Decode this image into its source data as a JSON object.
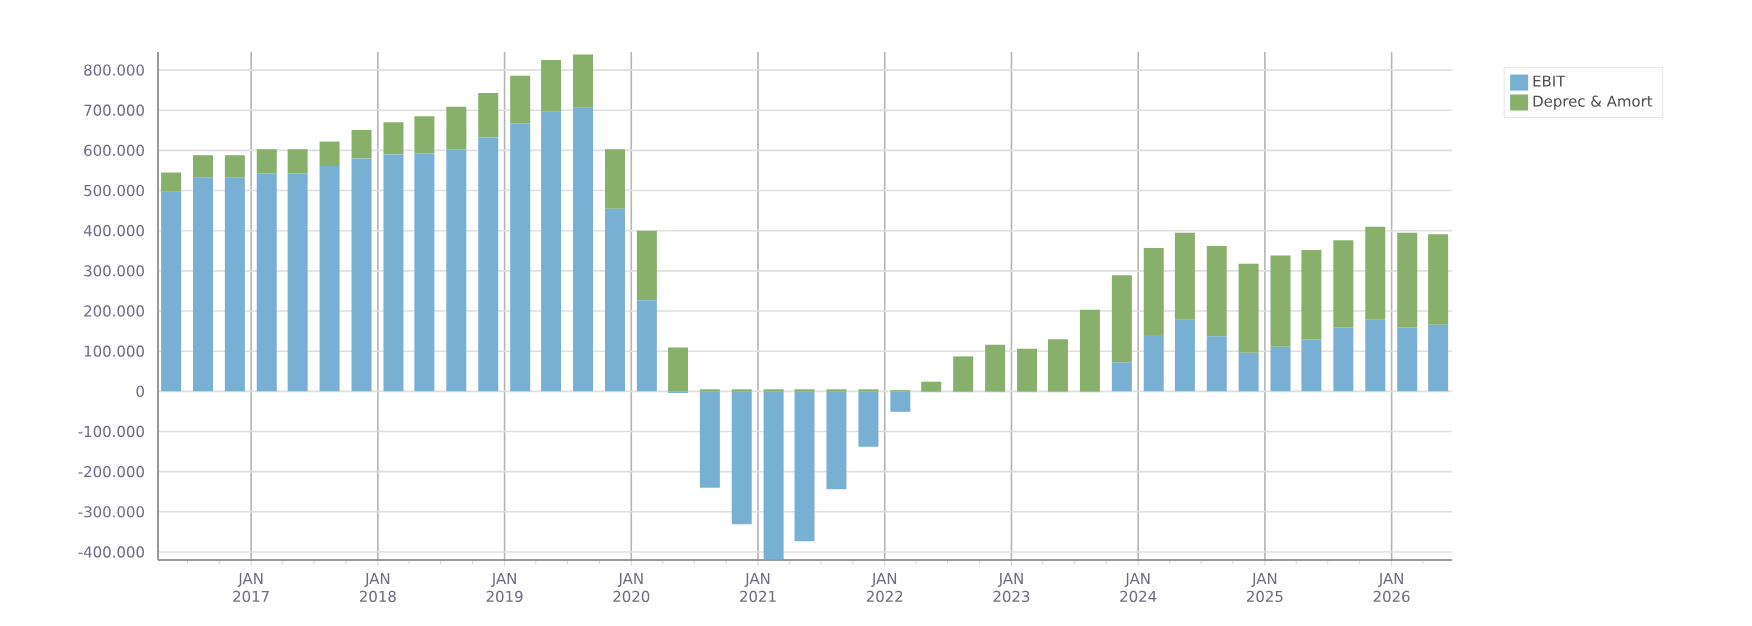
{
  "chart_data": {
    "type": "bar",
    "stacked": true,
    "x": [
      "2016-05-15",
      "2016-08-15",
      "2016-11-15",
      "2017-02-15",
      "2017-05-15",
      "2017-08-15",
      "2017-11-15",
      "2018-02-15",
      "2018-05-15",
      "2018-08-15",
      "2018-11-15",
      "2019-02-15",
      "2019-05-15",
      "2019-08-15",
      "2019-11-15",
      "2020-02-15",
      "2020-05-15",
      "2020-08-15",
      "2020-11-15",
      "2021-02-15",
      "2021-05-15",
      "2021-08-15",
      "2021-11-15",
      "2022-02-15",
      "2022-05-15",
      "2022-08-15",
      "2022-11-15",
      "2023-02-15",
      "2023-05-15",
      "2023-08-15",
      "2023-11-15",
      "2024-02-15",
      "2024-05-15",
      "2024-08-15",
      "2024-11-15",
      "2025-02-15",
      "2025-05-15",
      "2025-08-15",
      "2025-11-15",
      "2026-02-15",
      "2026-05-15"
    ],
    "series": [
      {
        "name": "EBIT",
        "color": "#78b0d4",
        "values": [
          497000,
          532000,
          532000,
          542000,
          542000,
          561000,
          580000,
          590000,
          593000,
          603000,
          632000,
          667000,
          696000,
          706000,
          455000,
          227000,
          -4000,
          -240000,
          -331000,
          -418000,
          -373000,
          -244000,
          -138000,
          -51000,
          -2000,
          -2000,
          -2000,
          -2000,
          -2000,
          -2000,
          72000,
          140000,
          178000,
          137000,
          96000,
          111000,
          130000,
          159000,
          178000,
          159000,
          166000
        ]
      },
      {
        "name": "Deprec & Amort",
        "color": "#88b06a",
        "values": [
          48000,
          56000,
          56000,
          61000,
          61000,
          61000,
          71000,
          80000,
          92000,
          106000,
          111000,
          119000,
          129000,
          133000,
          148000,
          173000,
          109000,
          5000,
          5000,
          5000,
          5000,
          5000,
          5000,
          3000,
          24000,
          87000,
          116000,
          106000,
          130000,
          203000,
          217000,
          217000,
          217000,
          225000,
          222000,
          227000,
          222000,
          217000,
          232000,
          236000,
          225000
        ]
      }
    ],
    "xlim": [
      "2016-04-07",
      "2026-06-24"
    ],
    "xticks": [
      {
        "value": "2016-07-01",
        "label": null
      },
      {
        "value": "2016-10-01",
        "label": null
      },
      {
        "value": "2017-01-01",
        "label": "JAN 2017"
      },
      {
        "value": "2017-04-01",
        "label": null
      },
      {
        "value": "2017-07-01",
        "label": null
      },
      {
        "value": "2017-10-01",
        "label": null
      },
      {
        "value": "2018-01-01",
        "label": "JAN 2018"
      },
      {
        "value": "2018-04-01",
        "label": null
      },
      {
        "value": "2018-07-01",
        "label": null
      },
      {
        "value": "2018-10-01",
        "label": null
      },
      {
        "value": "2019-01-01",
        "label": "JAN 2019"
      },
      {
        "value": "2019-04-01",
        "label": null
      },
      {
        "value": "2019-07-01",
        "label": null
      },
      {
        "value": "2019-10-01",
        "label": null
      },
      {
        "value": "2020-01-01",
        "label": "JAN 2020"
      },
      {
        "value": "2020-04-01",
        "label": null
      },
      {
        "value": "2020-07-01",
        "label": null
      },
      {
        "value": "2020-10-01",
        "label": null
      },
      {
        "value": "2021-01-01",
        "label": "JAN 2021"
      },
      {
        "value": "2021-04-01",
        "label": null
      },
      {
        "value": "2021-07-01",
        "label": null
      },
      {
        "value": "2021-10-01",
        "label": null
      },
      {
        "value": "2022-01-01",
        "label": "JAN 2022"
      },
      {
        "value": "2022-04-01",
        "label": null
      },
      {
        "value": "2022-07-01",
        "label": null
      },
      {
        "value": "2022-10-01",
        "label": null
      },
      {
        "value": "2023-01-01",
        "label": "JAN 2023"
      },
      {
        "value": "2023-04-01",
        "label": null
      },
      {
        "value": "2023-07-01",
        "label": null
      },
      {
        "value": "2023-10-01",
        "label": null
      },
      {
        "value": "2024-01-01",
        "label": "JAN 2024"
      },
      {
        "value": "2024-04-01",
        "label": null
      },
      {
        "value": "2024-07-01",
        "label": null
      },
      {
        "value": "2024-10-01",
        "label": null
      },
      {
        "value": "2025-01-01",
        "label": "JAN 2025"
      },
      {
        "value": "2025-04-01",
        "label": null
      },
      {
        "value": "2025-07-01",
        "label": null
      },
      {
        "value": "2025-10-01",
        "label": null
      },
      {
        "value": "2026-01-01",
        "label": "JAN 2026"
      },
      {
        "value": "2026-04-01",
        "label": null
      }
    ],
    "ylim": [
      -420000,
      845000
    ],
    "yticks": [
      {
        "value": -400000,
        "label": "-400.000"
      },
      {
        "value": -300000,
        "label": "-300.000"
      },
      {
        "value": -200000,
        "label": "-200.000"
      },
      {
        "value": -100000,
        "label": "-100.000"
      },
      0,
      {
        "value": 100000,
        "label": "100.000"
      },
      {
        "value": 200000,
        "label": "200.000"
      },
      {
        "value": 300000,
        "label": "300.000"
      },
      {
        "value": 400000,
        "label": "400.000"
      },
      {
        "value": 500000,
        "label": "500.000"
      },
      {
        "value": 600000,
        "label": "600.000"
      },
      {
        "value": 700000,
        "label": "700.000"
      },
      {
        "value": 800000,
        "label": "800.000"
      }
    ],
    "grid": true,
    "legend": "top right"
  }
}
